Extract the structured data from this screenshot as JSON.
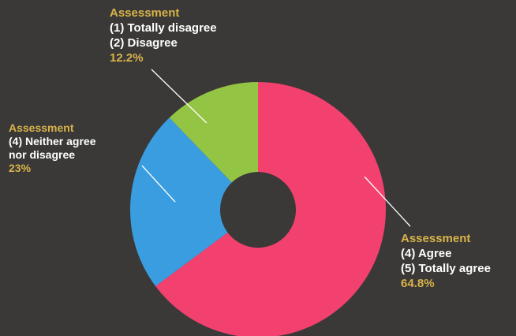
{
  "colors": {
    "background": "#3a3937",
    "label_title": "#d9b34a",
    "label_text": "#ffffff",
    "leader": "#ffffff"
  },
  "chart_data": {
    "type": "pie",
    "donut": true,
    "title": "",
    "slices": [
      {
        "key": "disagree",
        "title": "Assessment",
        "lines": [
          "(1) Totally disagree",
          "(2) Disagree"
        ],
        "value_label": "12.2%",
        "value": 12.2,
        "color": "#94c444"
      },
      {
        "key": "agree",
        "title": "Assessment",
        "lines": [
          "(4) Agree",
          "(5) Totally agree"
        ],
        "value_label": "64.8%",
        "value": 64.8,
        "color": "#f2416f"
      },
      {
        "key": "neutral",
        "title": "Assessment",
        "lines": [
          "(4) Neither agree",
          "nor disagree"
        ],
        "value_label": "23%",
        "value": 23,
        "color": "#3a9de0"
      }
    ]
  }
}
